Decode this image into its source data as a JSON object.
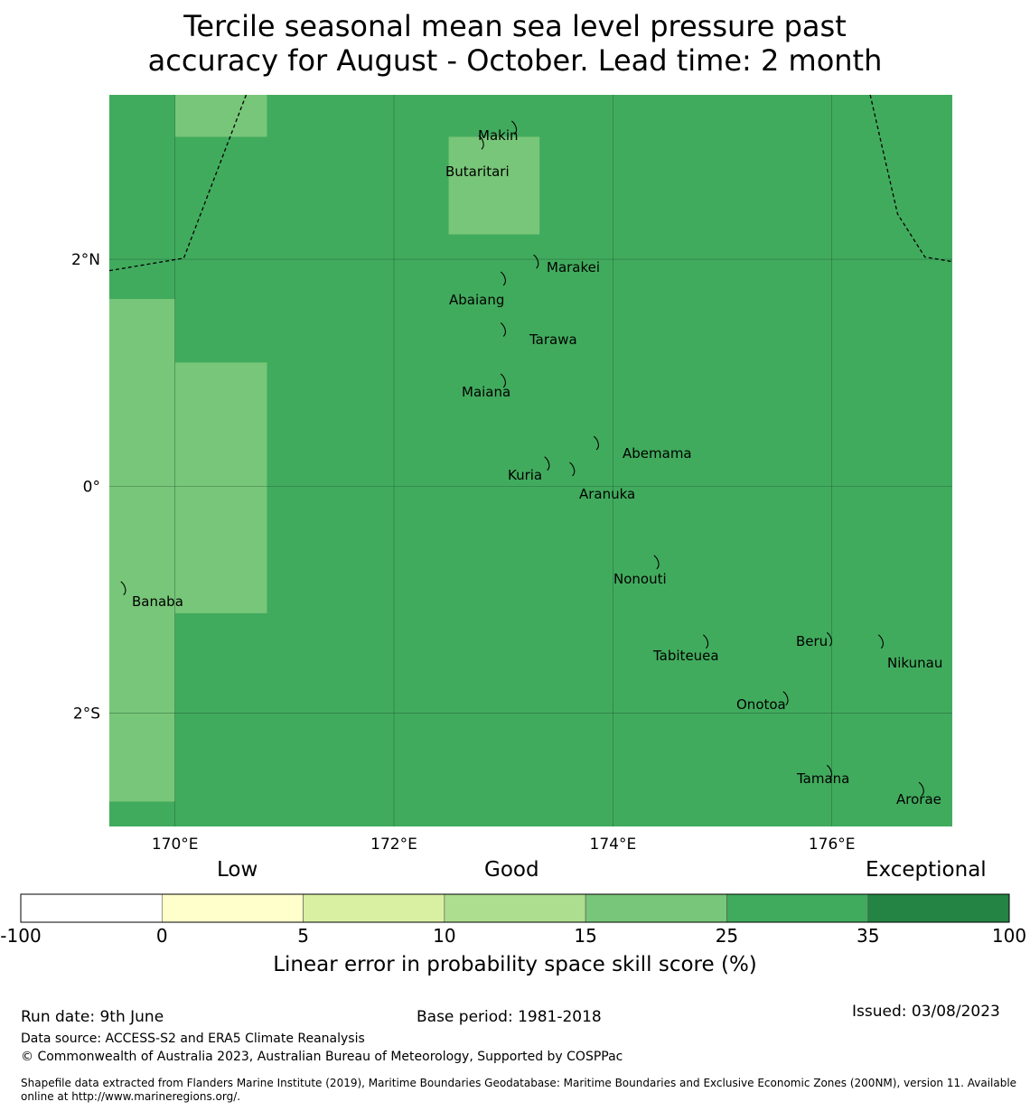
{
  "title": {
    "line1": "Tercile seasonal mean sea level pressure past",
    "line2": "accuracy for August - October. Lead time: 2 month"
  },
  "map": {
    "lon_range": [
      169.4,
      177.1
    ],
    "lat_range": [
      -3.0,
      3.45
    ],
    "ocean_color": "#41ab5d",
    "low_skill_color": "#78c679",
    "gridline_color": "#1f5a33",
    "x_ticks": [
      {
        "lon": 170,
        "label": "170°E"
      },
      {
        "lon": 172,
        "label": "172°E"
      },
      {
        "lon": 174,
        "label": "174°E"
      },
      {
        "lon": 176,
        "label": "176°E"
      }
    ],
    "y_ticks": [
      {
        "lat": 2,
        "label": "2°N"
      },
      {
        "lat": 0,
        "label": "0°"
      },
      {
        "lat": -2,
        "label": "2°S"
      }
    ],
    "skill_cells": [
      {
        "lon0": 170.0,
        "lon1": 170.84,
        "lat0": 3.08,
        "lat1": 3.45,
        "category": "15-25"
      },
      {
        "lon0": 172.5,
        "lon1": 173.33,
        "lat0": 2.22,
        "lat1": 3.08,
        "category": "15-25"
      },
      {
        "lon0": 169.4,
        "lon1": 170.0,
        "lat0": -2.78,
        "lat1": 1.65,
        "category": "15-25"
      },
      {
        "lon0": 170.0,
        "lon1": 170.84,
        "lat0": -1.12,
        "lat1": 1.09,
        "category": "15-25"
      }
    ],
    "eez_boundaries": [
      [
        [
          169.4,
          1.9
        ],
        [
          170.08,
          2.01
        ],
        [
          170.65,
          3.45
        ]
      ],
      [
        [
          176.35,
          3.45
        ],
        [
          176.6,
          2.4
        ],
        [
          176.85,
          2.02
        ],
        [
          177.1,
          1.98
        ]
      ]
    ],
    "islands": [
      {
        "name": "Makin",
        "lon": 173.1,
        "lat": 3.18
      },
      {
        "name": "Butaritari",
        "lon": 172.8,
        "lat": 3.05
      },
      {
        "name": "Marakei",
        "lon": 173.3,
        "lat": 2.0
      },
      {
        "name": "Abaiang",
        "lon": 173.0,
        "lat": 1.85
      },
      {
        "name": "Tarawa",
        "lon": 173.0,
        "lat": 1.4
      },
      {
        "name": "Maiana",
        "lon": 173.0,
        "lat": 0.95
      },
      {
        "name": "Abemama",
        "lon": 173.85,
        "lat": 0.4
      },
      {
        "name": "Kuria",
        "lon": 173.4,
        "lat": 0.22
      },
      {
        "name": "Aranuka",
        "lon": 173.63,
        "lat": 0.17
      },
      {
        "name": "Nonouti",
        "lon": 174.4,
        "lat": -0.65
      },
      {
        "name": "Banaba",
        "lon": 169.53,
        "lat": -0.88
      },
      {
        "name": "Tabiteuea",
        "lon": 174.85,
        "lat": -1.35
      },
      {
        "name": "Beru",
        "lon": 175.98,
        "lat": -1.33
      },
      {
        "name": "Nikunau",
        "lon": 176.45,
        "lat": -1.35
      },
      {
        "name": "Onotoa",
        "lon": 175.58,
        "lat": -1.85
      },
      {
        "name": "Tamana",
        "lon": 175.98,
        "lat": -2.5
      },
      {
        "name": "Arorae",
        "lon": 176.82,
        "lat": -2.65
      }
    ]
  },
  "colorbar": {
    "categories": [
      {
        "label": "Low",
        "position": "left"
      },
      {
        "label": "Good",
        "position": "center"
      },
      {
        "label": "Exceptional",
        "position": "right"
      }
    ],
    "segments": [
      {
        "from": -100,
        "to": 0,
        "color": "#ffffff"
      },
      {
        "from": 0,
        "to": 5,
        "color": "#ffffcc"
      },
      {
        "from": 5,
        "to": 10,
        "color": "#d9f0a3"
      },
      {
        "from": 10,
        "to": 15,
        "color": "#addd8e"
      },
      {
        "from": 15,
        "to": 25,
        "color": "#78c679"
      },
      {
        "from": 25,
        "to": 35,
        "color": "#41ab5d"
      },
      {
        "from": 35,
        "to": 100,
        "color": "#238443"
      }
    ],
    "ticks": [
      "-100",
      "0",
      "5",
      "10",
      "15",
      "25",
      "35",
      "100"
    ],
    "label": "Linear error in probability space skill score (%)"
  },
  "footer": {
    "run_date": "Run date: 9th June",
    "base_period": "Base period: 1981-2018",
    "issued": "Issued: 03/08/2023",
    "data_source": "Data source: ACCESS-S2 and ERA5 Climate Reanalysis",
    "copyright": "© Commonwealth of Australia 2023, Australian Bureau of Meteorology, Supported by COSPPac",
    "shapefile": "Shapefile data extracted from Flanders Marine Institute (2019), Maritime Boundaries Geodatabase: Maritime Boundaries and Exclusive Economic Zones (200NM), version 11. Available online at http://www.marineregions.org/."
  }
}
